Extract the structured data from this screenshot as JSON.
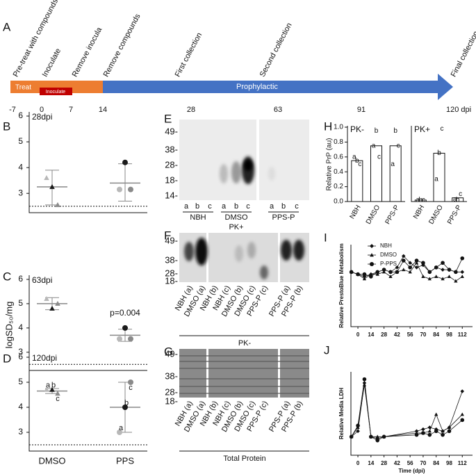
{
  "timeline": {
    "label": "A",
    "events": [
      "Pre-treat with compounds",
      "Inoculate",
      "Remove inocula",
      "Remove compounds",
      "First collection",
      "Second collection",
      "Final collection"
    ],
    "phases": [
      "Treat",
      "Inoculate",
      "Prophylactic"
    ],
    "ticks": [
      "-7",
      "0",
      "7",
      "14",
      "28",
      "63",
      "91",
      "120 dpi"
    ]
  },
  "chart_data": [
    {
      "type": "dotplot",
      "label": "B",
      "annotation": "28dpi",
      "ylim": [
        2.25,
        6
      ],
      "yticks": [
        3,
        4,
        5,
        6
      ],
      "threshold": 2.5,
      "markers": [
        "triangle",
        "circle"
      ],
      "series": [
        {
          "color": "#b8b8b8",
          "values": [
            3.6,
            3.15
          ]
        },
        {
          "color": "#1a1a1a",
          "values": [
            3.25,
            4.2
          ]
        },
        {
          "color": "#8a8a8a",
          "values": [
            2.55,
            3.15
          ]
        }
      ],
      "means": [
        3.25,
        3.4
      ],
      "errors": [
        [
          2.55,
          3.9
        ],
        [
          2.7,
          4.15
        ]
      ]
    },
    {
      "type": "dotplot",
      "label": "C",
      "annotation": "63dpi",
      "ylabel": "logSD₅₀/mg",
      "p_label": "p=0.004",
      "ylim": [
        2.25,
        6
      ],
      "yticks": [
        3,
        4,
        5,
        6
      ],
      "threshold": 2.5,
      "markers": [
        "triangle",
        "circle"
      ],
      "series": [
        {
          "color": "#b8b8b8",
          "values": [
            5.2,
            3.55
          ]
        },
        {
          "color": "#1a1a1a",
          "values": [
            4.8,
            4.0
          ]
        },
        {
          "color": "#8a8a8a",
          "values": [
            5.0,
            3.55
          ]
        }
      ],
      "means": [
        5.0,
        3.7
      ],
      "errors": [
        [
          4.75,
          5.25
        ],
        [
          3.45,
          3.95
        ]
      ]
    },
    {
      "type": "dotplot",
      "label": "D",
      "annotation": "120dpi",
      "categories": [
        "DMSO",
        "PPS"
      ],
      "ylim": [
        2.25,
        6
      ],
      "yticks": [
        3,
        4,
        5,
        6
      ],
      "threshold": 2.5,
      "markers": [
        "triangle",
        "circle"
      ],
      "series": [
        {
          "name": "a",
          "color": "#b8b8b8",
          "values": [
            4.7,
            3.0
          ]
        },
        {
          "name": "b",
          "color": "#1a1a1a",
          "values": [
            4.7,
            4.0
          ]
        },
        {
          "name": "c",
          "color": "#8a8a8a",
          "values": [
            4.55,
            5.0
          ]
        }
      ],
      "means": [
        4.65,
        4.0
      ],
      "errors": [
        [
          4.55,
          4.75
        ],
        [
          3.0,
          5.0
        ]
      ]
    },
    {
      "type": "bar",
      "label": "H",
      "annotation": "PK-",
      "ylabel": "Relative PrP (au)",
      "categories": [
        "NBH",
        "DMSO",
        "PPS-P"
      ],
      "values": [
        0.55,
        0.75,
        0.75
      ],
      "color": "#ffffff",
      "ylim": [
        0,
        1
      ],
      "yticks": [
        {
          "value": 0,
          "label": "0.0"
        },
        0.2,
        0.4,
        0.6,
        0.8,
        {
          "value": 1,
          "label": "1.0"
        }
      ],
      "series": [
        {
          "name": "a",
          "values": [
            0.6,
            0.75,
            0.5
          ]
        },
        {
          "name": "b",
          "values": [
            0.55,
            0.95,
            0.95
          ]
        },
        {
          "name": "c",
          "values": [
            0.5,
            0.6,
            0.75
          ]
        }
      ]
    },
    {
      "type": "bar",
      "annotation": "PK+",
      "categories": [
        "NBH",
        "DMSO",
        "PPS-P"
      ],
      "values": [
        0.02,
        0.65,
        0.05
      ],
      "color": "#ffffff",
      "ylim": [
        0,
        1
      ],
      "series": [
        {
          "name": "a",
          "values": [
            0.02,
            0.3,
            0.03
          ]
        },
        {
          "name": "b",
          "values": [
            0.02,
            0.65,
            0.02
          ]
        },
        {
          "name": "c",
          "values": [
            0.02,
            0.98,
            0.1
          ]
        }
      ]
    },
    {
      "type": "line",
      "label": "I",
      "ylabel": "Relative PrestoBlue Metabolism",
      "x": [
        -7,
        0,
        7,
        14,
        21,
        28,
        35,
        42,
        49,
        56,
        63,
        70,
        77,
        84,
        91,
        98,
        105,
        112
      ],
      "xlim": [
        -7.5,
        123
      ],
      "xticks": [
        0,
        14,
        28,
        42,
        56,
        70,
        84,
        98,
        112
      ],
      "ylim": [
        -0.2,
        1.6
      ],
      "series": [
        {
          "name": "NBH",
          "marker": "diamond",
          "color": "#111111",
          "values": [
            1.0,
            0.95,
            0.9,
            0.95,
            1.0,
            1.05,
            1.0,
            1.1,
            1.35,
            1.2,
            1.1,
            1.15,
            1.0,
            1.1,
            1.05,
            1.05,
            1.0,
            1.0
          ]
        },
        {
          "name": "DMSO",
          "marker": "triangle",
          "color": "#111111",
          "values": [
            1.0,
            0.95,
            0.85,
            0.95,
            0.95,
            1.0,
            0.9,
            1.0,
            1.05,
            1.0,
            1.2,
            0.9,
            0.85,
            0.9,
            0.85,
            0.9,
            0.8,
            0.9
          ]
        },
        {
          "name": "P-PPS",
          "marker": "circle",
          "color": "#111111",
          "values": [
            1.0,
            0.95,
            0.95,
            0.9,
            1.0,
            1.05,
            1.0,
            1.0,
            1.25,
            1.1,
            1.25,
            1.2,
            1.0,
            1.1,
            1.2,
            1.05,
            1.0,
            1.3
          ]
        }
      ]
    },
    {
      "type": "line",
      "label": "J",
      "ylabel": "Relative Media LDH",
      "xlabel": "Time (dpi)",
      "x": [
        -7,
        0,
        7,
        14,
        21,
        28,
        63,
        70,
        77,
        84,
        91,
        98,
        112
      ],
      "xlim": [
        -7.5,
        123
      ],
      "xticks": [
        0,
        14,
        28,
        42,
        56,
        70,
        84,
        98,
        112
      ],
      "ylim": [
        0,
        4.5
      ],
      "series": [
        {
          "marker": "diamond",
          "color": "#111111",
          "values": [
            1.0,
            1.3,
            3.9,
            1.0,
            0.9,
            1.0,
            1.3,
            1.4,
            1.5,
            1.4,
            1.3,
            1.5,
            3.45
          ]
        },
        {
          "marker": "triangle",
          "color": "#111111",
          "values": [
            1.0,
            1.5,
            3.8,
            1.0,
            1.0,
            1.0,
            1.2,
            1.2,
            1.3,
            2.2,
            1.3,
            1.5,
            2.2
          ]
        },
        {
          "marker": "circle",
          "color": "#111111",
          "values": [
            1.0,
            1.6,
            4.1,
            1.0,
            0.8,
            1.0,
            1.1,
            1.2,
            1.1,
            1.3,
            1.1,
            1.3,
            1.9
          ]
        }
      ]
    }
  ],
  "blots": [
    {
      "label": "E",
      "size_markers": [
        "49-",
        "38-",
        "28-",
        "18-",
        "14-"
      ],
      "lanes": [
        "a",
        "b",
        "c",
        "a",
        "b",
        "c",
        "a",
        "b",
        "c"
      ],
      "groups": [
        "NBH",
        "DMSO",
        "PPS-P"
      ],
      "caption": "PK+"
    },
    {
      "label": "F",
      "size_markers": [
        "49-",
        "38-",
        "28-",
        "18-"
      ],
      "lanes": [
        "NBH (a)",
        "DMSO (a)",
        "NBH (b)",
        "NBH (c)",
        "DMSO (b)",
        "DMSO (c)",
        "PPS-P (c)",
        "PPS-P (a)",
        "PPS-P (b)"
      ],
      "caption": "PK-"
    },
    {
      "label": "G",
      "size_markers": [
        "49-",
        "38-",
        "28-",
        "18-"
      ],
      "lanes": [
        "NBH (a)",
        "DMSO (a)",
        "NBH (b)",
        "NBH (c)",
        "DMSO (b)",
        "DMSO (c)",
        "PPS-P (c)",
        "PPS-P (a)",
        "PPS-P (b)"
      ],
      "caption": "Total Protein"
    }
  ]
}
